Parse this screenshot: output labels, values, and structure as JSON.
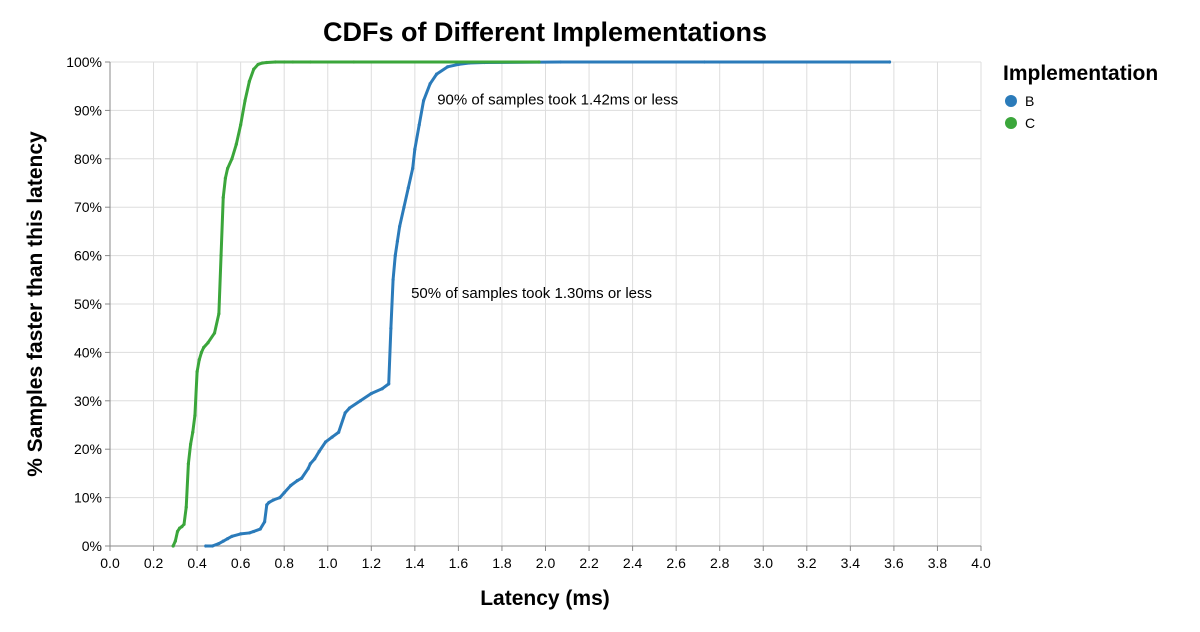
{
  "chart_data": {
    "type": "line",
    "title": "CDFs of Different Implementations",
    "xlabel": "Latency (ms)",
    "ylabel": "% Samples faster than this latency",
    "xlim": [
      0,
      4
    ],
    "ylim": [
      0,
      1
    ],
    "x_ticks": [
      "0.0",
      "0.2",
      "0.4",
      "0.6",
      "0.8",
      "1.0",
      "1.2",
      "1.4",
      "1.6",
      "1.8",
      "2.0",
      "2.2",
      "2.4",
      "2.6",
      "2.8",
      "3.0",
      "3.2",
      "3.4",
      "3.6",
      "3.8",
      "4.0"
    ],
    "y_ticks": [
      "0%",
      "10%",
      "20%",
      "30%",
      "40%",
      "50%",
      "60%",
      "70%",
      "80%",
      "90%",
      "100%"
    ],
    "grid": true,
    "legend": {
      "title": "Implementation",
      "placement": "right"
    },
    "series": [
      {
        "name": "B",
        "color": "#2b7bba",
        "x": [
          0.44,
          0.47,
          0.5,
          0.52,
          0.54,
          0.56,
          0.6,
          0.64,
          0.66,
          0.69,
          0.71,
          0.72,
          0.73,
          0.75,
          0.78,
          0.8,
          0.83,
          0.86,
          0.88,
          0.91,
          0.92,
          0.94,
          0.96,
          0.99,
          1.02,
          1.05,
          1.08,
          1.1,
          1.15,
          1.2,
          1.25,
          1.28,
          1.29,
          1.3,
          1.31,
          1.32,
          1.33,
          1.35,
          1.37,
          1.39,
          1.4,
          1.42,
          1.44,
          1.47,
          1.5,
          1.55,
          1.6,
          1.65,
          1.72,
          2.07,
          2.73,
          3.58
        ],
        "y": [
          0.0,
          0.0,
          0.005,
          0.01,
          0.015,
          0.02,
          0.025,
          0.027,
          0.03,
          0.035,
          0.05,
          0.085,
          0.09,
          0.095,
          0.1,
          0.11,
          0.125,
          0.135,
          0.14,
          0.16,
          0.17,
          0.18,
          0.195,
          0.215,
          0.225,
          0.235,
          0.275,
          0.285,
          0.3,
          0.315,
          0.325,
          0.335,
          0.45,
          0.55,
          0.6,
          0.63,
          0.66,
          0.7,
          0.74,
          0.78,
          0.82,
          0.87,
          0.92,
          0.955,
          0.975,
          0.99,
          0.995,
          0.998,
          0.999,
          1.0,
          1.0,
          1.0
        ]
      },
      {
        "name": "C",
        "color": "#3ba63b",
        "x": [
          0.29,
          0.3,
          0.31,
          0.32,
          0.33,
          0.34,
          0.35,
          0.36,
          0.37,
          0.38,
          0.39,
          0.4,
          0.41,
          0.42,
          0.43,
          0.45,
          0.48,
          0.5,
          0.51,
          0.52,
          0.53,
          0.54,
          0.56,
          0.58,
          0.6,
          0.62,
          0.64,
          0.66,
          0.68,
          0.7,
          0.72,
          0.76,
          0.8,
          0.84,
          0.92,
          1.12,
          1.97
        ],
        "y": [
          0.0,
          0.01,
          0.03,
          0.037,
          0.04,
          0.045,
          0.08,
          0.17,
          0.21,
          0.235,
          0.27,
          0.36,
          0.385,
          0.4,
          0.41,
          0.42,
          0.44,
          0.48,
          0.6,
          0.72,
          0.76,
          0.78,
          0.8,
          0.83,
          0.87,
          0.92,
          0.96,
          0.985,
          0.995,
          0.998,
          0.999,
          1.0,
          1.0,
          1.0,
          1.0,
          1.0,
          1.0
        ]
      }
    ],
    "annotations": [
      {
        "text": "90% of samples took 1.42ms or less",
        "x": 1.42,
        "y": 0.9
      },
      {
        "text": "50% of samples took 1.30ms or less",
        "x": 1.3,
        "y": 0.5
      }
    ]
  }
}
